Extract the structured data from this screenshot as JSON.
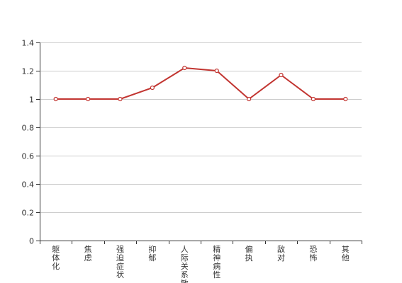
{
  "chart_data": {
    "type": "line",
    "categories": [
      "躯体化",
      "焦虑",
      "强迫症状",
      "抑郁",
      "人际关系敏感",
      "精神病性",
      "偏执",
      "敌对",
      "恐怖",
      "其他"
    ],
    "series": [
      {
        "values": [
          1.0,
          1.0,
          1.0,
          1.08,
          1.22,
          1.2,
          1.0,
          1.17,
          1.0,
          1.0
        ]
      }
    ],
    "ylim": [
      0,
      1.4
    ],
    "yticks": [
      "0",
      "0.2",
      "0.4",
      "0.6",
      "0.8",
      "1",
      "1.2",
      "1.4"
    ],
    "grid": true,
    "legend": "none",
    "colors": {
      "line": "#c23531",
      "grid": "#cccccc",
      "axis": "#333333",
      "marker_fill": "#ffffff"
    }
  }
}
